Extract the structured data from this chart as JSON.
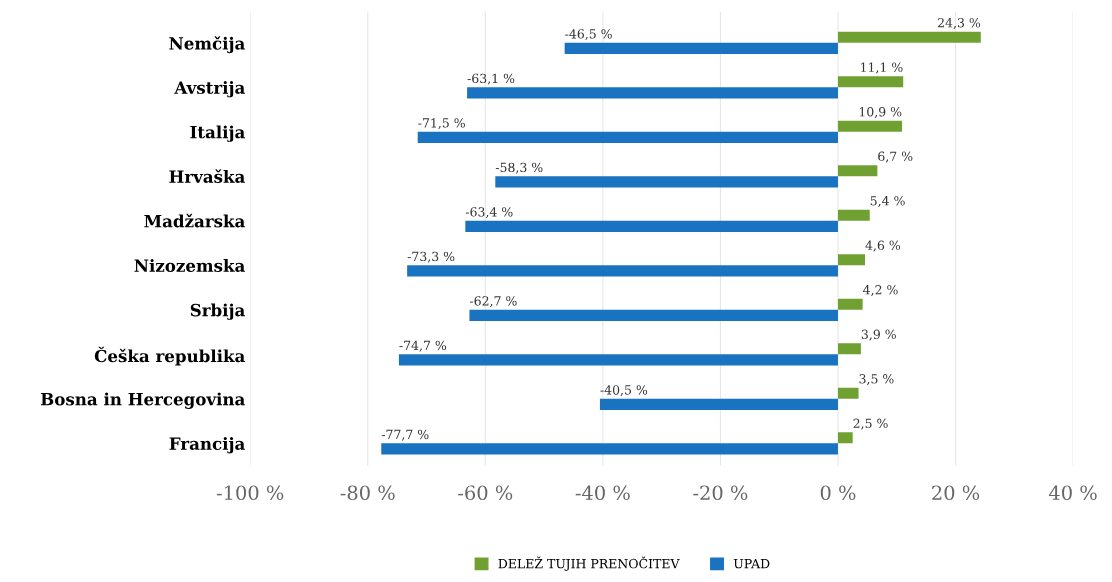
{
  "chart_data": {
    "type": "bar",
    "orientation": "horizontal",
    "categories": [
      "Nemčija",
      "Avstrija",
      "Italija",
      "Hrvaška",
      "Madžarska",
      "Nizozemska",
      "Srbija",
      "Češka republika",
      "Bosna in Hercegovina",
      "Francija"
    ],
    "series": [
      {
        "name": "DELEŽ TUJIH PRENOČITEV",
        "color": "#70a032",
        "values": [
          24.3,
          11.1,
          10.9,
          6.7,
          5.4,
          4.6,
          4.2,
          3.9,
          3.5,
          2.5
        ],
        "value_labels": [
          "24,3 %",
          "11,1 %",
          "10,9 %",
          "6,7 %",
          "5,4 %",
          "4,6 %",
          "4,2 %",
          "3,9 %",
          "3,5 %",
          "2,5 %"
        ]
      },
      {
        "name": "UPAD",
        "color": "#1a73c0",
        "values": [
          -46.5,
          -63.1,
          -71.5,
          -58.3,
          -63.4,
          -73.3,
          -62.7,
          -74.7,
          -40.5,
          -77.7
        ],
        "value_labels": [
          "-46,5 %",
          "-63,1 %",
          "-71,5 %",
          "-58,3 %",
          "-63,4 %",
          "-73,3 %",
          "-62,7 %",
          "-74,7 %",
          "-40,5 %",
          "-77,7 %"
        ]
      }
    ],
    "xlim": [
      -100,
      40
    ],
    "xticks": [
      {
        "value": -100,
        "label": "-100 %"
      },
      {
        "value": -80,
        "label": "-80 %"
      },
      {
        "value": -60,
        "label": "-60 %"
      },
      {
        "value": -40,
        "label": "-40 %"
      },
      {
        "value": -20,
        "label": "-20 %"
      },
      {
        "value": 0,
        "label": "0 %"
      },
      {
        "value": 20,
        "label": "20 %"
      },
      {
        "value": 40,
        "label": "40 %"
      }
    ],
    "grid": "x",
    "legend": "bottom"
  }
}
